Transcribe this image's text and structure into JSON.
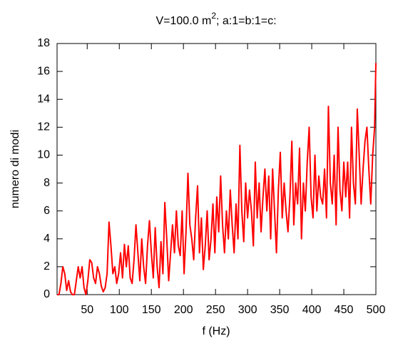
{
  "chart_data": {
    "type": "line",
    "title_parts": [
      "V=100.0 m",
      "2",
      "; a:1=b:1=c:"
    ],
    "x_label": "f (Hz)",
    "y_label": "numero di modi",
    "xlim": [
      3,
      500
    ],
    "ylim": [
      0,
      18
    ],
    "xticks": [
      50,
      100,
      150,
      200,
      250,
      300,
      350,
      400,
      450,
      500
    ],
    "yticks": [
      0,
      2,
      4,
      6,
      8,
      10,
      12,
      14,
      16,
      18
    ],
    "x": [
      3,
      6,
      9,
      12,
      15,
      18,
      21,
      24,
      27,
      30,
      33,
      36,
      39,
      42,
      45,
      48,
      51,
      54,
      57,
      60,
      63,
      66,
      69,
      72,
      75,
      78,
      81,
      84,
      87,
      90,
      93,
      96,
      99,
      102,
      105,
      108,
      111,
      114,
      117,
      120,
      123,
      126,
      129,
      132,
      135,
      138,
      141,
      144,
      147,
      150,
      153,
      156,
      159,
      162,
      165,
      168,
      171,
      174,
      177,
      180,
      183,
      186,
      189,
      192,
      195,
      198,
      201,
      204,
      207,
      210,
      213,
      216,
      219,
      222,
      225,
      228,
      231,
      234,
      237,
      240,
      243,
      246,
      249,
      252,
      255,
      258,
      261,
      264,
      267,
      270,
      273,
      276,
      279,
      282,
      285,
      288,
      291,
      294,
      297,
      300,
      303,
      306,
      309,
      312,
      315,
      318,
      321,
      324,
      327,
      330,
      333,
      336,
      339,
      342,
      345,
      348,
      351,
      354,
      357,
      360,
      363,
      366,
      369,
      372,
      375,
      378,
      381,
      384,
      387,
      390,
      393,
      396,
      399,
      402,
      405,
      408,
      411,
      414,
      417,
      420,
      423,
      426,
      429,
      432,
      435,
      438,
      441,
      444,
      447,
      450,
      453,
      456,
      459,
      462,
      465,
      468,
      471,
      474,
      477,
      480,
      483,
      486,
      489,
      492,
      495,
      498,
      500
    ],
    "series": [
      {
        "color": "#ff0000",
        "values": [
          0,
          0,
          0.8,
          2,
          1.5,
          0.3,
          1,
          0.2,
          0,
          0,
          1,
          2,
          1.2,
          2,
          0.5,
          0,
          1,
          2.5,
          2.3,
          1.2,
          0.8,
          2,
          1.5,
          0.6,
          0.2,
          0.5,
          1.5,
          5.2,
          3.5,
          1.5,
          2,
          0.8,
          1.5,
          3,
          1.2,
          3.6,
          2,
          3.5,
          1.2,
          0.8,
          2.5,
          5,
          3,
          1,
          4,
          2,
          0.8,
          3.5,
          5.3,
          3,
          1.2,
          4.8,
          2,
          0.5,
          3.8,
          1.5,
          6.6,
          4,
          1,
          3,
          5,
          3,
          6,
          3.5,
          2.8,
          6,
          1.5,
          4.5,
          8.7,
          5,
          4,
          2.5,
          5.5,
          7.8,
          3,
          5.5,
          1.8,
          3.5,
          6,
          2.5,
          4,
          6.5,
          3,
          7,
          4.5,
          8.5,
          5,
          3,
          6,
          4,
          7.5,
          5,
          3,
          6.5,
          4,
          10.7,
          6,
          3.8,
          8,
          5.5,
          7.5,
          6,
          3.5,
          9.5,
          5.5,
          8,
          4.5,
          7,
          9,
          6,
          8.5,
          4,
          9,
          6,
          3,
          7.5,
          10.2,
          5.5,
          8,
          6,
          4.5,
          7,
          11,
          5,
          8,
          6.5,
          10.5,
          4,
          8,
          6,
          9.5,
          12,
          7,
          5.5,
          10,
          6,
          8.5,
          7,
          6.5,
          9,
          5.5,
          13.5,
          8,
          6.5,
          10,
          5,
          12,
          7.5,
          6,
          9.5,
          7,
          9.5,
          5.5,
          12,
          8,
          6.5,
          13.3,
          10,
          6.5,
          9,
          11,
          12,
          9,
          6.5,
          10,
          12,
          16.6
        ]
      }
    ]
  }
}
